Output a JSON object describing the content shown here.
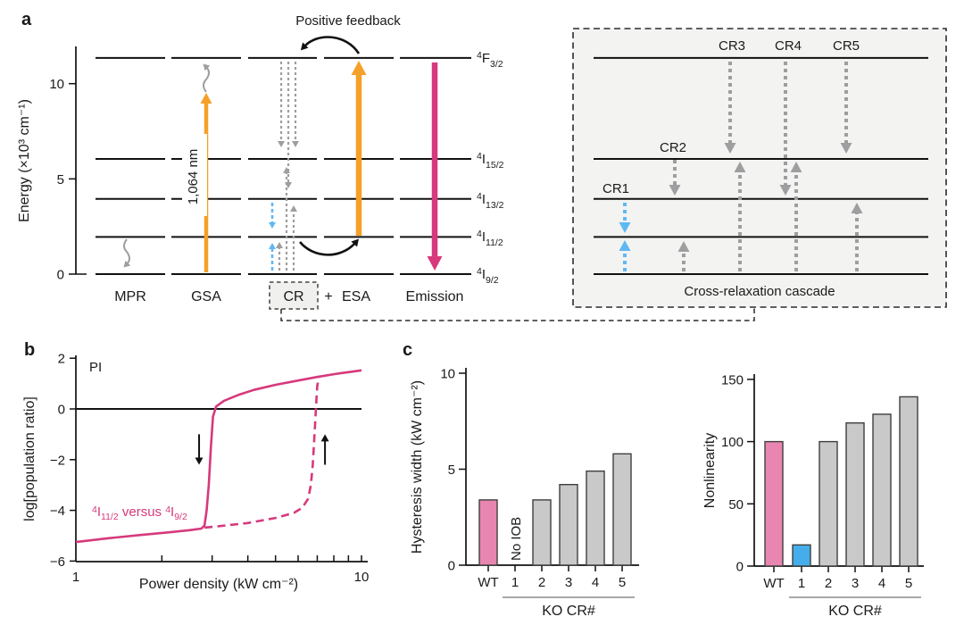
{
  "figure": {
    "panel_a_label": "a",
    "panel_b_label": "b",
    "panel_c_label": "c"
  },
  "panel_a": {
    "y_axis_label": "Energy (×10³ cm⁻¹)",
    "y_ticks": [
      {
        "value": 0,
        "label": "0"
      },
      {
        "value": 5,
        "label": "5"
      },
      {
        "value": 10,
        "label": "10"
      }
    ],
    "positive_feedback_label": "Positive feedback",
    "pump_wavelength_label": "1,064 nm",
    "levels": [
      {
        "sup": "4",
        "sym": "F",
        "sub": "3/2",
        "energy_1e3_cm": 11.35
      },
      {
        "sup": "4",
        "sym": "I",
        "sub": "15/2",
        "energy_1e3_cm": 6.05
      },
      {
        "sup": "4",
        "sym": "I",
        "sub": "13/2",
        "energy_1e3_cm": 3.95
      },
      {
        "sup": "4",
        "sym": "I",
        "sub": "11/2",
        "energy_1e3_cm": 1.95
      },
      {
        "sup": "4",
        "sym": "I",
        "sub": "9/2",
        "energy_1e3_cm": 0
      }
    ],
    "processes": {
      "mpr": "MPR",
      "gsa": "GSA",
      "cr": "CR",
      "plus": "+",
      "esa": "ESA",
      "emission": "Emission"
    },
    "inset": {
      "title": "Cross-relaxation cascade",
      "cr1": "CR1",
      "cr2": "CR2",
      "cr3": "CR3",
      "cr4": "CR4",
      "cr5": "CR5"
    },
    "colors": {
      "gsa_esa_arrows": "#f5a028",
      "emission_arrow": "#d6397c",
      "cr1_arrows": "#5fb8f2",
      "gray_arrows": "#9e9ea0",
      "inset_background": "#f3f3f2"
    }
  },
  "panel_b": {
    "pi_label": "PI",
    "comparison_parts": [
      "4",
      "I",
      "11/2",
      " versus ",
      "4",
      "I",
      "9/2"
    ]
  },
  "chart_data": [
    {
      "id": "population-ratio-hysteresis",
      "type": "line",
      "xlabel": "Power density (kW cm⁻²)",
      "ylabel": "log[population ratio]",
      "xscale": "log",
      "xlim": [
        1,
        10
      ],
      "ylim": [
        -6,
        2
      ],
      "yticks": [
        2,
        0,
        -2,
        -4,
        -6
      ],
      "xticks": [
        {
          "value": 1,
          "label": "1"
        },
        {
          "value": 10,
          "label": "10"
        }
      ],
      "minor_xticks": [
        2,
        3,
        4,
        5,
        6,
        7,
        8,
        9,
        10
      ],
      "zero_line": 0,
      "line_color": "#d6397c",
      "series": [
        {
          "name": "decreasing-power-sweep",
          "style": "solid",
          "x": [
            1,
            1.3,
            1.7,
            2.1,
            2.5,
            2.75,
            2.82,
            2.87,
            2.92,
            2.97,
            3.02,
            3.1,
            3.3,
            3.7,
            4.2,
            5,
            6,
            7,
            8,
            9,
            10
          ],
          "y": [
            -5.25,
            -5.1,
            -4.97,
            -4.87,
            -4.78,
            -4.72,
            -4.6,
            -4.0,
            -3.0,
            -1.5,
            -0.3,
            0.1,
            0.32,
            0.55,
            0.75,
            0.95,
            1.12,
            1.26,
            1.37,
            1.45,
            1.52
          ]
        },
        {
          "name": "increasing-power-sweep",
          "style": "dashed",
          "x": [
            2.82,
            3.2,
            4,
            5,
            5.8,
            6.2,
            6.5,
            6.65,
            6.75,
            6.85,
            6.95,
            7.0,
            7.1
          ],
          "y": [
            -4.68,
            -4.62,
            -4.5,
            -4.3,
            -4.1,
            -3.9,
            -3.55,
            -3.0,
            -2.2,
            -1.0,
            0.3,
            0.9,
            1.26
          ]
        }
      ],
      "sweep_arrows": [
        {
          "dir": "down",
          "x": 2.7,
          "y_from": -1.0,
          "y_to": -2.2
        },
        {
          "dir": "up",
          "x": 7.45,
          "y_from": -2.2,
          "y_to": -1.0
        }
      ]
    },
    {
      "id": "hysteresis-width",
      "type": "bar",
      "ylabel": "Hysteresis width (kW cm⁻²)",
      "ylim": [
        0,
        10
      ],
      "yticks": [
        0,
        5,
        10
      ],
      "categories": [
        "WT",
        "1",
        "2",
        "3",
        "4",
        "5"
      ],
      "values": [
        3.4,
        null,
        3.4,
        4.2,
        4.9,
        5.8
      ],
      "bar_colors": [
        "#e886b1",
        "none",
        "#c9c9c9",
        "#c9c9c9",
        "#c9c9c9",
        "#c9c9c9"
      ],
      "null_note": "No IOB",
      "group_label": "KO CR#"
    },
    {
      "id": "nonlinearity",
      "type": "bar",
      "ylabel": "Nonlinearity",
      "ylim": [
        0,
        150
      ],
      "yticks": [
        0,
        50,
        100,
        150
      ],
      "categories": [
        "WT",
        "1",
        "2",
        "3",
        "4",
        "5"
      ],
      "values": [
        100,
        17,
        100,
        115,
        122,
        136
      ],
      "bar_colors": [
        "#e886b1",
        "#45aeea",
        "#c9c9c9",
        "#c9c9c9",
        "#c9c9c9",
        "#c9c9c9"
      ],
      "group_label": "KO CR#"
    }
  ]
}
